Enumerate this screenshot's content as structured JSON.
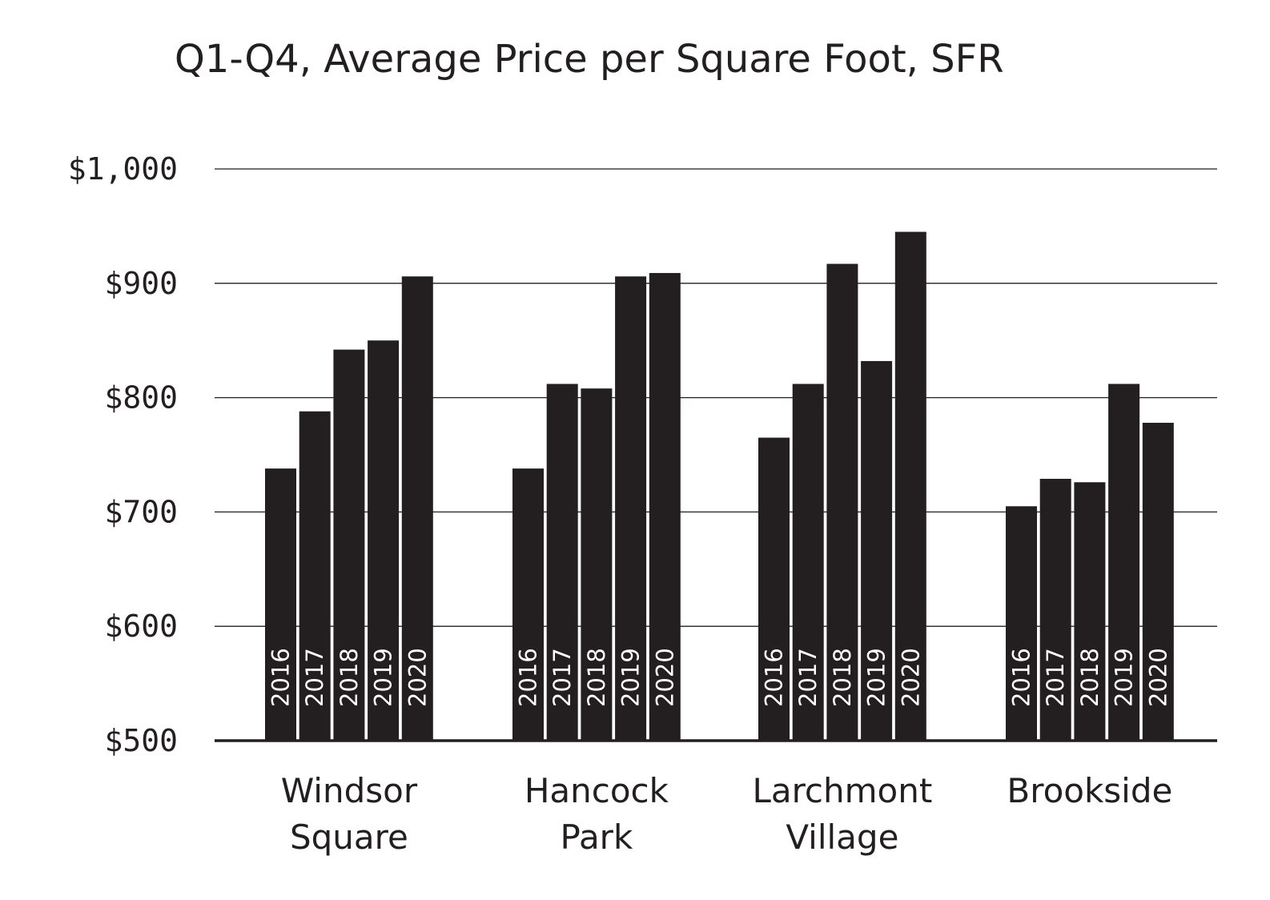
{
  "chart_data": {
    "type": "bar",
    "title": "Q1-Q4, Average Price per Square Foot, SFR",
    "xlabel": "",
    "ylabel": "",
    "ylim": [
      500,
      1000
    ],
    "y_ticks": [
      {
        "value": 1000,
        "label": "$1,000"
      },
      {
        "value": 900,
        "label": "$900"
      },
      {
        "value": 800,
        "label": "$800"
      },
      {
        "value": 700,
        "label": "$700"
      },
      {
        "value": 600,
        "label": "$600"
      },
      {
        "value": 500,
        "label": "$500"
      }
    ],
    "grid": true,
    "bar_color": "#231f20",
    "bar_label_color": "#ffffff",
    "series_labels": [
      "2016",
      "2017",
      "2018",
      "2019",
      "2020"
    ],
    "groups": [
      {
        "label_lines": [
          "Windsor",
          "Square"
        ],
        "values": [
          738,
          788,
          842,
          850,
          906
        ]
      },
      {
        "label_lines": [
          "Hancock",
          "Park"
        ],
        "values": [
          738,
          812,
          808,
          906,
          909
        ]
      },
      {
        "label_lines": [
          "Larchmont",
          "Village"
        ],
        "values": [
          765,
          812,
          917,
          832,
          945
        ]
      },
      {
        "label_lines": [
          "Brookside"
        ],
        "values": [
          705,
          729,
          726,
          812,
          778
        ]
      }
    ]
  }
}
